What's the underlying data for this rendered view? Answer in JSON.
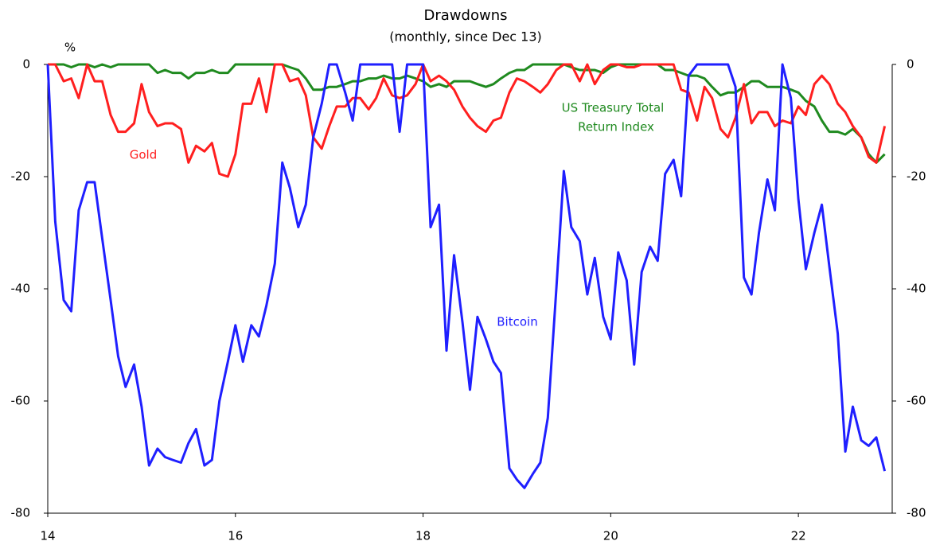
{
  "chart_data": {
    "type": "line",
    "title": "Drawdowns",
    "subtitle": "(monthly, since Dec 13)",
    "y_unit": "%",
    "annotations": [
      "Gold",
      "Bitcoin",
      "US Treasury Total",
      "Return Index"
    ],
    "x": [
      14,
      14.08,
      14.17,
      14.25,
      14.33,
      14.42,
      14.5,
      14.58,
      14.67,
      14.75,
      14.83,
      14.92,
      15,
      15.08,
      15.17,
      15.25,
      15.33,
      15.42,
      15.5,
      15.58,
      15.67,
      15.75,
      15.83,
      15.92,
      16,
      16.08,
      16.17,
      16.25,
      16.33,
      16.42,
      16.5,
      16.58,
      16.67,
      16.75,
      16.83,
      16.92,
      17,
      17.08,
      17.17,
      17.25,
      17.33,
      17.42,
      17.5,
      17.58,
      17.67,
      17.75,
      17.83,
      17.92,
      18,
      18.08,
      18.17,
      18.25,
      18.33,
      18.42,
      18.5,
      18.58,
      18.67,
      18.75,
      18.83,
      18.92,
      19,
      19.08,
      19.17,
      19.25,
      19.33,
      19.42,
      19.5,
      19.58,
      19.67,
      19.75,
      19.83,
      19.92,
      20,
      20.08,
      20.17,
      20.25,
      20.33,
      20.42,
      20.5,
      20.58,
      20.67,
      20.75,
      20.83,
      20.92,
      21,
      21.08,
      21.17,
      21.25,
      21.33,
      21.42,
      21.5,
      21.58,
      21.67,
      21.75,
      21.83,
      21.92,
      22,
      22.08,
      22.17,
      22.25,
      22.33,
      22.42,
      22.5,
      22.58,
      22.67,
      22.75,
      22.83,
      22.92
    ],
    "series": [
      {
        "name": "Bitcoin",
        "color": "#1f1fff",
        "values": [
          0,
          -28,
          -42,
          -44,
          -26,
          -21,
          -21,
          -31,
          -42,
          -52,
          -57.5,
          -53.5,
          -61,
          -71.5,
          -68.5,
          -70,
          -70.5,
          -71,
          -67.5,
          -65,
          -71.5,
          -70.5,
          -60,
          -53,
          -46.5,
          -53,
          -46.5,
          -48.5,
          -43,
          -35.5,
          -17.5,
          -22,
          -29,
          -25,
          -13,
          -7,
          0,
          0,
          -5,
          -10,
          0,
          0,
          0,
          0,
          0,
          -12,
          0,
          0,
          0,
          -29,
          -25,
          -51,
          -34,
          -46,
          -58,
          -45,
          -49,
          -53,
          -55,
          -72,
          -74,
          -75.5,
          -73,
          -71,
          -63,
          -40,
          -19,
          -29,
          -31.5,
          -41,
          -34.5,
          -45,
          -49,
          -33.5,
          -38.5,
          -53.5,
          -37,
          -32.5,
          -35,
          -19.5,
          -17,
          -23.5,
          -2,
          0,
          0,
          0,
          0,
          0,
          -4,
          -38,
          -41,
          -30,
          -20.5,
          -26,
          0,
          -6,
          -24,
          -36.5,
          -30,
          -25,
          -36,
          -48,
          -69,
          -61,
          -67,
          -68,
          -66.5,
          -72.5
        ]
      },
      {
        "name": "Gold",
        "color": "#ff1f1f",
        "values": [
          0,
          0,
          -3,
          -2.5,
          -6,
          0,
          -3,
          -3,
          -9,
          -12,
          -12,
          -10.5,
          -3.5,
          -8.5,
          -11,
          -10.5,
          -10.5,
          -11.5,
          -17.5,
          -14.5,
          -15.5,
          -14,
          -19.5,
          -20,
          -16,
          -7,
          -7,
          -2.5,
          -8.5,
          0,
          0,
          -3,
          -2.5,
          -5.5,
          -13,
          -15,
          -11,
          -7.5,
          -7.5,
          -6,
          -6,
          -8,
          -6,
          -2.5,
          -5.5,
          -6,
          -5.5,
          -3.5,
          0,
          -3,
          -2,
          -3,
          -4.5,
          -7.5,
          -9.5,
          -11,
          -12,
          -10,
          -9.5,
          -5,
          -2.5,
          -3,
          -4,
          -5,
          -3.5,
          -1,
          0,
          0,
          -3,
          0,
          -3.5,
          -1,
          0,
          0,
          -0.5,
          -0.5,
          0,
          0,
          0,
          0,
          0,
          -4.5,
          -5,
          -10,
          -4,
          -6,
          -11.5,
          -13,
          -9.5,
          -3.5,
          -10.5,
          -8.5,
          -8.5,
          -11,
          -10,
          -10.5,
          -7.5,
          -9,
          -3.5,
          -2,
          -3.5,
          -7,
          -8.5,
          -11,
          -13,
          -16.5,
          -17.5,
          -11
        ]
      },
      {
        "name": "US Treasury Total Return Index",
        "color": "#1f8a1f",
        "values": [
          0,
          0,
          0,
          -0.5,
          0,
          0,
          -0.5,
          0,
          -0.5,
          0,
          0,
          0,
          0,
          0,
          -1.5,
          -1,
          -1.5,
          -1.5,
          -2.5,
          -1.5,
          -1.5,
          -1,
          -1.5,
          -1.5,
          0,
          0,
          0,
          0,
          0,
          0,
          0,
          -0.5,
          -1,
          -2.5,
          -4.5,
          -4.5,
          -4,
          -4,
          -3.5,
          -3,
          -3,
          -2.5,
          -2.5,
          -2,
          -2.5,
          -2.5,
          -2,
          -2.5,
          -3,
          -4,
          -3.5,
          -4,
          -3,
          -3,
          -3,
          -3.5,
          -4,
          -3.5,
          -2.5,
          -1.5,
          -1,
          -1,
          0,
          0,
          0,
          0,
          0,
          -0.5,
          -1,
          -1,
          -1,
          -1.5,
          -0.5,
          0,
          0,
          0,
          0,
          0,
          0,
          -1,
          -1,
          -1.5,
          -2,
          -2,
          -2.5,
          -4,
          -5.5,
          -5,
          -5,
          -4,
          -3,
          -3,
          -4,
          -4,
          -4,
          -4.5,
          -5,
          -6.5,
          -7.5,
          -10,
          -12,
          -12,
          -12.5,
          -11.5,
          -13,
          -16,
          -17.5,
          -16
        ]
      }
    ],
    "xlim": [
      14,
      23
    ],
    "xticks": [
      14,
      16,
      18,
      20,
      22
    ],
    "ylim": [
      -80,
      0
    ],
    "yticks": [
      -80,
      -60,
      -40,
      -20,
      0
    ],
    "y2lim": [
      -80,
      0
    ],
    "y2ticks": [
      -80,
      -60,
      -40,
      -20,
      0
    ],
    "grid": false
  }
}
